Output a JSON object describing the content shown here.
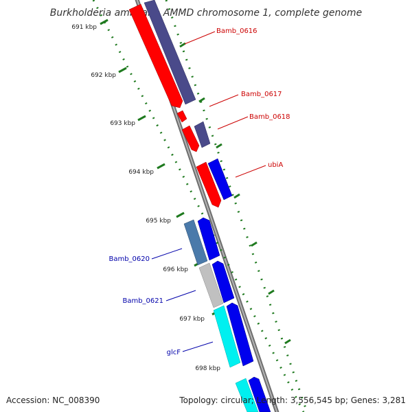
{
  "title": "Burkholderia ambifaria AMMD chromosome 1, complete genome",
  "footer": {
    "accession": "Accession: NC_008390",
    "summary": "Topology: circular; Length: 3,556,545 bp; Genes: 3,281"
  },
  "colors": {
    "backbone": "#8c8c8c",
    "ticks": "#1f7a1f",
    "label_forward": "#cc0000",
    "label_reverse": "#0000aa"
  },
  "ticks": [
    "691 kbp",
    "692 kbp",
    "693 kbp",
    "694 kbp",
    "695 kbp",
    "696 kbp",
    "697 kbp",
    "698 kbp"
  ],
  "features": [
    {
      "name": "cds-forward-1",
      "color": "#ff0000"
    },
    {
      "name": "cds-forward-2",
      "color": "#ff0000"
    },
    {
      "name": "cds-forward-3",
      "color": "#ff0000"
    },
    {
      "name": "cds-forward-4",
      "color": "#ff0000"
    },
    {
      "name": "gene-forward-1",
      "color": "#4a4a8a"
    },
    {
      "name": "gene-forward-2",
      "color": "#4a4a8a"
    },
    {
      "name": "gene-forward-3",
      "color": "#0000ee"
    },
    {
      "name": "cds-reverse-1",
      "color": "#4a7aaa"
    },
    {
      "name": "cds-reverse-2",
      "color": "#c0c0c0"
    },
    {
      "name": "cds-reverse-3",
      "color": "#00f0f0"
    },
    {
      "name": "cds-reverse-4",
      "color": "#00f0f0"
    },
    {
      "name": "gene-reverse-1",
      "color": "#0000ee"
    },
    {
      "name": "gene-reverse-2",
      "color": "#0000ee"
    },
    {
      "name": "gene-reverse-3",
      "color": "#0000ee"
    },
    {
      "name": "gene-reverse-4",
      "color": "#0000ee"
    }
  ],
  "labels": [
    {
      "text": "Bamb_0616",
      "color": "#cc0000"
    },
    {
      "text": "Bamb_0617",
      "color": "#cc0000"
    },
    {
      "text": "Bamb_0618",
      "color": "#cc0000"
    },
    {
      "text": "ubiA",
      "color": "#cc0000"
    },
    {
      "text": "Bamb_0620",
      "color": "#0000aa"
    },
    {
      "text": "Bamb_0621",
      "color": "#0000aa"
    },
    {
      "text": "glcF",
      "color": "#0000aa"
    }
  ]
}
